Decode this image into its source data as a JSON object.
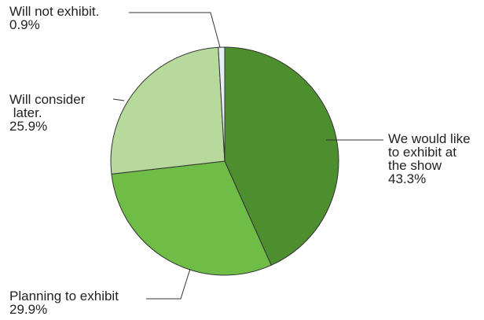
{
  "chart_data": {
    "type": "pie",
    "slices": [
      {
        "label_lines": [
          "We would like",
          "to exhibit at",
          "the show"
        ],
        "percent_text": "43.3%",
        "value": 43.3,
        "color": "#4d8f2f"
      },
      {
        "label_lines": [
          "Planning to exhibit"
        ],
        "percent_text": "29.9%",
        "value": 29.9,
        "color": "#6fbd47"
      },
      {
        "label_lines": [
          "Will consider",
          " later."
        ],
        "percent_text": "25.9%",
        "value": 25.9,
        "color": "#b7d99c"
      },
      {
        "label_lines": [
          "Will not exhibit."
        ],
        "percent_text": "0.9%",
        "value": 0.9,
        "color": "#e8eff7"
      }
    ],
    "start_angle_deg": 0,
    "direction": "clockwise"
  }
}
